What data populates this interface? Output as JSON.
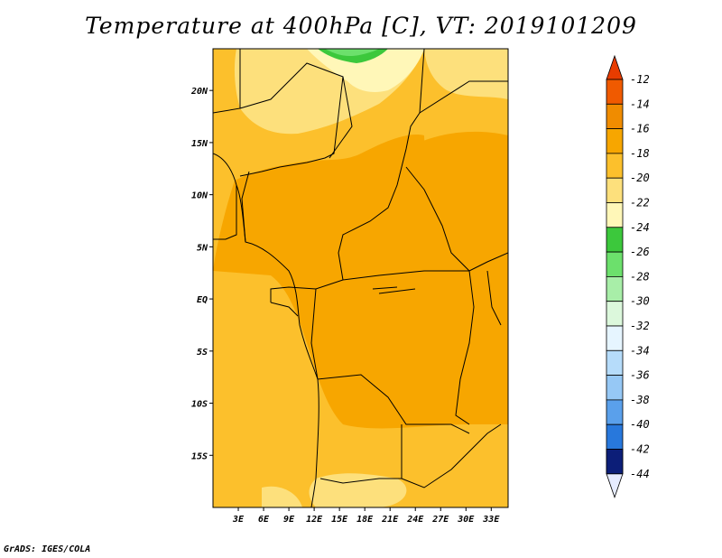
{
  "title": "Temperature at 400hPa [C], VT: 2019101209",
  "credit": "GrADS: IGES/COLA",
  "map": {
    "lon_range": [
      0,
      35
    ],
    "lat_range": [
      -20,
      24
    ],
    "lat_ticks": [
      {
        "value": 20,
        "label": "20N"
      },
      {
        "value": 15,
        "label": "15N"
      },
      {
        "value": 10,
        "label": "10N"
      },
      {
        "value": 5,
        "label": "5N"
      },
      {
        "value": 0,
        "label": "EQ"
      },
      {
        "value": -5,
        "label": "5S"
      },
      {
        "value": -10,
        "label": "10S"
      },
      {
        "value": -15,
        "label": "15S"
      }
    ],
    "lon_ticks": [
      {
        "value": 3,
        "label": "3E"
      },
      {
        "value": 6,
        "label": "6E"
      },
      {
        "value": 9,
        "label": "9E"
      },
      {
        "value": 12,
        "label": "12E"
      },
      {
        "value": 15,
        "label": "15E"
      },
      {
        "value": 18,
        "label": "18E"
      },
      {
        "value": 21,
        "label": "21E"
      },
      {
        "value": 24,
        "label": "24E"
      },
      {
        "value": 27,
        "label": "27E"
      },
      {
        "value": 30,
        "label": "30E"
      },
      {
        "value": 33,
        "label": "33E"
      }
    ]
  },
  "legend": {
    "levels": [
      {
        "label": "-12",
        "color": "#f05a00"
      },
      {
        "label": "-14",
        "color": "#f08c00"
      },
      {
        "label": "-16",
        "color": "#f7a600"
      },
      {
        "label": "-18",
        "color": "#fcc02c"
      },
      {
        "label": "-20",
        "color": "#fde07c"
      },
      {
        "label": "-22",
        "color": "#fff7b8"
      },
      {
        "label": "-24",
        "color": "#3cc83c"
      },
      {
        "label": "-26",
        "color": "#6ce06c"
      },
      {
        "label": "-28",
        "color": "#a8eea8"
      },
      {
        "label": "-30",
        "color": "#dcf8dc"
      },
      {
        "label": "-32",
        "color": "#e6f5ff"
      },
      {
        "label": "-34",
        "color": "#b6dcfa"
      },
      {
        "label": "-36",
        "color": "#96c8f5"
      },
      {
        "label": "-38",
        "color": "#5aa0eb"
      },
      {
        "label": "-40",
        "color": "#2878dc"
      },
      {
        "label": "-42",
        "color": "#1e5ac8"
      },
      {
        "label": "-44",
        "color": "#1440a8"
      }
    ],
    "top_arrow_color": "#e83c00",
    "bottom_arrow_color": "#e6ecff",
    "last_box_color": "#0c1e78"
  }
}
